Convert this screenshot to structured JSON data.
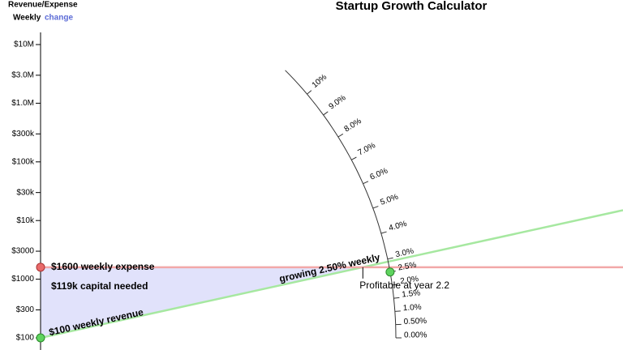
{
  "header": {
    "axis_title": "Revenue/Expense",
    "period": "Weekly",
    "change": "change"
  },
  "chart_data": {
    "type": "line",
    "title": "Startup Growth Calculator",
    "x": [
      0,
      3.9
    ],
    "xlim": [
      0,
      3.9
    ],
    "ylim": [
      100,
      10000000
    ],
    "log_y": true,
    "yticks": [
      {
        "value": 10000000,
        "label": "$10M"
      },
      {
        "value": 3000000,
        "label": "$3.0M"
      },
      {
        "value": 1000000,
        "label": "$1.0M"
      },
      {
        "value": 300000,
        "label": "$300k"
      },
      {
        "value": 100000,
        "label": "$100k"
      },
      {
        "value": 30000,
        "label": "$30k"
      },
      {
        "value": 10000,
        "label": "$10k"
      },
      {
        "value": 3000,
        "label": "$3000"
      },
      {
        "value": 1000,
        "label": "$1000"
      },
      {
        "value": 300,
        "label": "$300"
      },
      {
        "value": 100,
        "label": "$100"
      }
    ],
    "series": [
      {
        "color": "#a6e8a0",
        "values": [
          100,
          15000
        ]
      },
      {
        "color": "#f2a8a8",
        "values": [
          1600,
          1600
        ]
      }
    ],
    "annotations": {
      "expense": "$1600 weekly expense",
      "capital": "$119k capital needed",
      "revenue": "$100 weekly revenue",
      "growth": "growing 2.50% weekly",
      "profitable": "Profitable at year 2.2"
    },
    "dial": {
      "lim": [
        0,
        10
      ],
      "value": 2.5,
      "ticks": [
        {
          "value": 0,
          "label": "0.00%"
        },
        {
          "value": 0.5,
          "label": "0.50%"
        },
        {
          "value": 1,
          "label": "1.0%"
        },
        {
          "value": 1.5,
          "label": "1.5%"
        },
        {
          "value": 2,
          "label": "2.0%"
        },
        {
          "value": 2.5,
          "label": "2.5%"
        },
        {
          "value": 3,
          "label": "3.0%"
        },
        {
          "value": 4,
          "label": "4.0%"
        },
        {
          "value": 5,
          "label": "5.0%"
        },
        {
          "value": 6,
          "label": "6.0%"
        },
        {
          "value": 7,
          "label": "7.0%"
        },
        {
          "value": 8,
          "label": "8.0%"
        },
        {
          "value": 9,
          "label": "9.0%"
        },
        {
          "value": 10,
          "label": "10%"
        }
      ]
    }
  }
}
